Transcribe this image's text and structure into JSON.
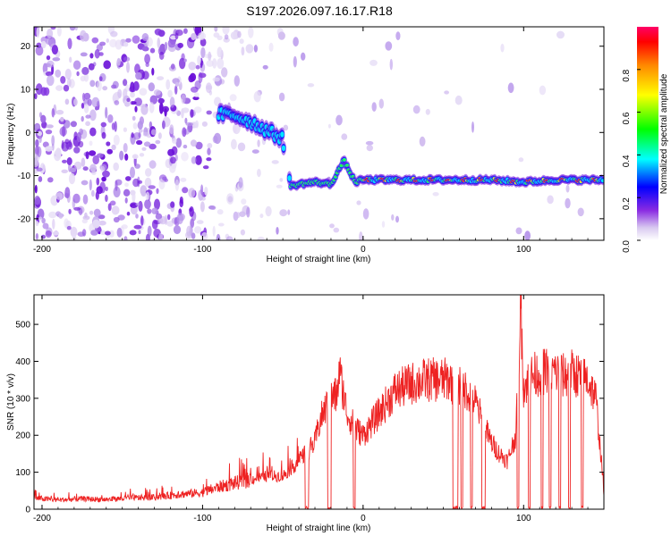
{
  "chart_data": [
    {
      "type": "heatmap",
      "title": "S197.2026.097.16.17.R18",
      "xlabel": "Height of straight line (km)",
      "ylabel": "Frequency (Hz)",
      "xlim": [
        -205,
        150
      ],
      "ylim": [
        -25,
        24.5
      ],
      "xticks": [
        -200,
        -100,
        0,
        100
      ],
      "yticks": [
        20,
        10,
        0,
        -10,
        -20
      ],
      "colorbar": {
        "label": "Normalized spectral amplitude",
        "range": [
          0.0,
          1.0
        ],
        "ticks": [
          0.0,
          0.2,
          0.4,
          0.6,
          0.8
        ],
        "stops": [
          "#ffffff",
          "#d8c8f0",
          "#8a2be2",
          "#0000ff",
          "#00ffff",
          "#00ff00",
          "#ffff00",
          "#ff8800",
          "#ff0000",
          "#ff0066"
        ]
      },
      "ridge": [
        {
          "x": -90,
          "freq": 4.2
        },
        {
          "x": -80,
          "freq": 4.0
        },
        {
          "x": -70,
          "freq": 2.5
        },
        {
          "x": -60,
          "freq": 0.5
        },
        {
          "x": -50,
          "freq": -1.5
        },
        {
          "x": -45,
          "freq": -12.5
        },
        {
          "x": -40,
          "freq": -12.0
        },
        {
          "x": -30,
          "freq": -11.5
        },
        {
          "x": -20,
          "freq": -12.0
        },
        {
          "x": -12,
          "freq": -6.5
        },
        {
          "x": -5,
          "freq": -11.5
        },
        {
          "x": 0,
          "freq": -11.0
        },
        {
          "x": 20,
          "freq": -11.0
        },
        {
          "x": 40,
          "freq": -11.0
        },
        {
          "x": 60,
          "freq": -11.0
        },
        {
          "x": 80,
          "freq": -11.0
        },
        {
          "x": 100,
          "freq": -11.5
        },
        {
          "x": 120,
          "freq": -11.0
        },
        {
          "x": 140,
          "freq": -11.0
        },
        {
          "x": 150,
          "freq": -11.0
        }
      ]
    },
    {
      "type": "line",
      "xlabel": "Height of straight line (km)",
      "ylabel": "SNR (10 * v/v)",
      "xlim": [
        -205,
        150
      ],
      "ylim": [
        0,
        580
      ],
      "xticks": [
        -200,
        -100,
        0,
        100
      ],
      "yticks": [
        0,
        100,
        200,
        300,
        400,
        500
      ],
      "color": "#ee2222",
      "series": [
        {
          "name": "SNR",
          "x": [
            -205,
            -190,
            -175,
            -160,
            -145,
            -130,
            -115,
            -100,
            -90,
            -80,
            -70,
            -60,
            -50,
            -45,
            -40,
            -30,
            -28,
            -25,
            -20,
            -16,
            -15,
            -10,
            -5,
            0,
            5,
            10,
            15,
            20,
            25,
            30,
            35,
            40,
            50,
            55,
            58,
            60,
            62,
            65,
            70,
            75,
            80,
            85,
            90,
            95,
            97,
            98,
            100,
            105,
            110,
            115,
            120,
            125,
            130,
            135,
            140,
            145,
            150
          ],
          "values": [
            30,
            25,
            28,
            26,
            30,
            32,
            40,
            45,
            60,
            70,
            80,
            90,
            90,
            110,
            130,
            180,
            220,
            260,
            300,
            310,
            380,
            260,
            220,
            200,
            230,
            260,
            290,
            320,
            330,
            340,
            345,
            350,
            350,
            350,
            300,
            340,
            330,
            320,
            290,
            230,
            180,
            150,
            130,
            200,
            380,
            580,
            330,
            360,
            370,
            375,
            370,
            360,
            370,
            360,
            350,
            300,
            50
          ]
        }
      ]
    }
  ]
}
